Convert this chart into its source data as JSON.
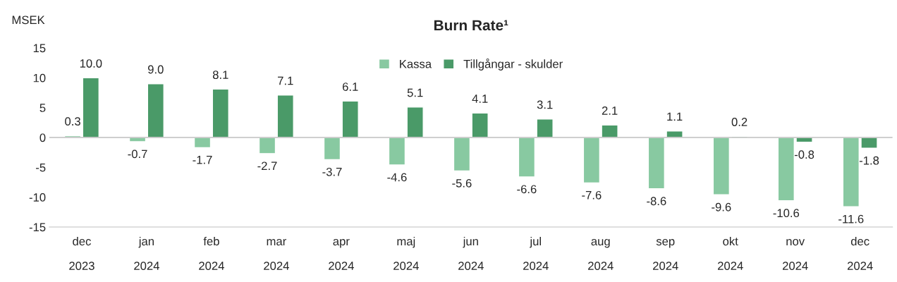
{
  "chart_data": {
    "type": "bar",
    "title": "Burn Rate¹",
    "ylabel": "MSEK",
    "categories": [
      "dec 2023",
      "jan 2024",
      "feb 2024",
      "mar 2024",
      "apr 2024",
      "maj 2024",
      "jun 2024",
      "jul 2024",
      "aug 2024",
      "sep 2024",
      "okt 2024",
      "nov 2024",
      "dec 2024"
    ],
    "series": [
      {
        "name": "Kassa",
        "color": "#88c9a1",
        "values": [
          0.3,
          -0.7,
          -1.7,
          -2.7,
          -3.7,
          -4.6,
          -5.6,
          -6.6,
          -7.6,
          -8.6,
          -9.6,
          -10.6,
          -11.6
        ],
        "value_labels": [
          "0.3",
          "-0.7",
          "-1.7",
          "-2.7",
          "-3.7",
          "-4.6",
          "-5.6",
          "-6.6",
          "-7.6",
          "-8.6",
          "-9.6",
          "-10.6",
          "-11.6"
        ]
      },
      {
        "name": "Tillgångar - skulder",
        "color": "#4a9a68",
        "values": [
          10,
          9,
          8.1,
          7.1,
          6.1,
          5.1,
          4.1,
          3.1,
          2.1,
          1.1,
          0.2,
          -0.8,
          -1.8
        ],
        "value_labels": [
          "10.0",
          "9.0",
          "8.1",
          "7.1",
          "6.1",
          "5.1",
          "4.1",
          "3.1",
          "2.1",
          "1.1",
          "0.2",
          "-0.8",
          "-1.8"
        ]
      }
    ],
    "ylim": [
      -15,
      15
    ],
    "yticks": [
      -15,
      -10,
      -5,
      0,
      5,
      10,
      15
    ],
    "legend": "top"
  }
}
